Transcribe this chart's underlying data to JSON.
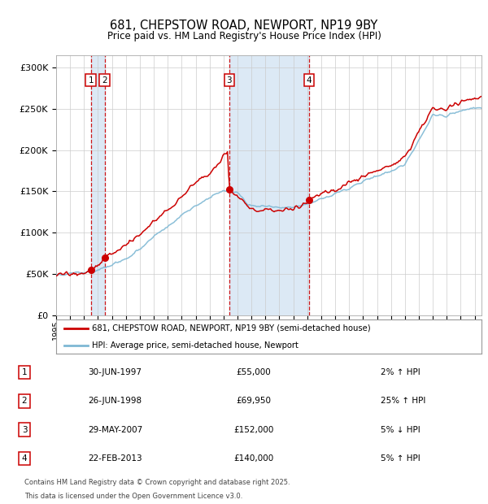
{
  "title1": "681, CHEPSTOW ROAD, NEWPORT, NP19 9BY",
  "title2": "Price paid vs. HM Land Registry's House Price Index (HPI)",
  "ylabel_ticks": [
    "£0",
    "£50K",
    "£100K",
    "£150K",
    "£200K",
    "£250K",
    "£300K"
  ],
  "ylabel_values": [
    0,
    50000,
    100000,
    150000,
    200000,
    250000,
    300000
  ],
  "ylim": [
    0,
    315000
  ],
  "xlim_start": 1995.0,
  "xlim_end": 2025.5,
  "sales": [
    {
      "num": 1,
      "date_dec": 1997.49,
      "price": 55000,
      "label": "30-JUN-1997",
      "price_str": "£55,000",
      "pct": "2% ↑ HPI"
    },
    {
      "num": 2,
      "date_dec": 1998.48,
      "price": 69950,
      "label": "26-JUN-1998",
      "price_str": "£69,950",
      "pct": "25% ↑ HPI"
    },
    {
      "num": 3,
      "date_dec": 2007.41,
      "price": 152000,
      "label": "29-MAY-2007",
      "price_str": "£152,000",
      "pct": "5% ↓ HPI"
    },
    {
      "num": 4,
      "date_dec": 2013.14,
      "price": 140000,
      "label": "22-FEB-2013",
      "price_str": "£140,000",
      "pct": "5% ↑ HPI"
    }
  ],
  "legend_line1": "681, CHEPSTOW ROAD, NEWPORT, NP19 9BY (semi-detached house)",
  "legend_line2": "HPI: Average price, semi-detached house, Newport",
  "footnote1": "Contains HM Land Registry data © Crown copyright and database right 2025.",
  "footnote2": "This data is licensed under the Open Government Licence v3.0.",
  "line_color_red": "#cc0000",
  "line_color_blue": "#7EB8D4",
  "bg_color": "#ffffff",
  "grid_color": "#cccccc",
  "highlight_color": "#dce9f5"
}
